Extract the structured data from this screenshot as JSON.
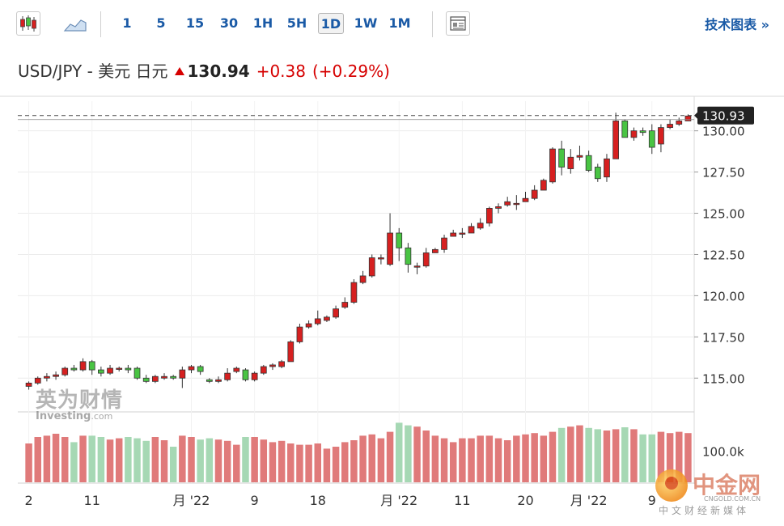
{
  "toolbar": {
    "timeframes": [
      "1",
      "5",
      "15",
      "30",
      "1H",
      "5H",
      "1D",
      "1W",
      "1M"
    ],
    "active_timeframe": "1D",
    "technical_label": "技术图表 »"
  },
  "quote": {
    "pair": "USD/JPY - 美元 日元",
    "price": "130.94",
    "change": "+0.38",
    "change_pct": "(+0.29%)"
  },
  "watermark": {
    "cn": "英为财情",
    "en": "Investing",
    "en_suffix": ".com"
  },
  "logo": {
    "name": "中金网",
    "sub": "中文财经新媒体",
    "domain": "CNGOLD.COM.CN"
  },
  "colors": {
    "up": "#d62020",
    "down": "#49c443",
    "vol_up": "#e07a7a",
    "vol_down": "#a6d8b4",
    "accent": "#1a5aa6"
  },
  "chart_data": {
    "type": "candlestick",
    "title": "USD/JPY - 美元 日元",
    "current_price_label": "130.93",
    "ylim": [
      113.0,
      131.8
    ],
    "y_ticks": [
      115.0,
      117.5,
      120.0,
      122.5,
      125.0,
      127.5,
      130.0
    ],
    "y_tick_labels": [
      "115.00",
      "117.50",
      "120.00",
      "122.50",
      "125.00",
      "127.50",
      "130.00"
    ],
    "volume_tick_label": "100.0k",
    "x_labels": [
      {
        "i": 0,
        "label": "2"
      },
      {
        "i": 7,
        "label": "11"
      },
      {
        "i": 18,
        "label": "月 '22"
      },
      {
        "i": 25,
        "label": "9"
      },
      {
        "i": 32,
        "label": "18"
      },
      {
        "i": 41,
        "label": "月 '22"
      },
      {
        "i": 48,
        "label": "11"
      },
      {
        "i": 55,
        "label": "20"
      },
      {
        "i": 62,
        "label": "月 '22"
      },
      {
        "i": 69,
        "label": "9"
      }
    ],
    "candles": [
      [
        114.5,
        114.7,
        114.3,
        114.8,
        60
      ],
      [
        114.7,
        115.0,
        114.6,
        115.1,
        70
      ],
      [
        115.0,
        115.1,
        114.8,
        115.3,
        72
      ],
      [
        115.1,
        115.2,
        114.9,
        115.4,
        75
      ],
      [
        115.2,
        115.6,
        115.1,
        115.7,
        70
      ],
      [
        115.6,
        115.5,
        115.4,
        115.8,
        62
      ],
      [
        115.5,
        116.0,
        115.4,
        116.2,
        72
      ],
      [
        116.0,
        115.5,
        115.2,
        116.1,
        72
      ],
      [
        115.5,
        115.3,
        115.1,
        115.7,
        70
      ],
      [
        115.3,
        115.6,
        115.2,
        115.8,
        66
      ],
      [
        115.6,
        115.6,
        115.4,
        115.7,
        68
      ],
      [
        115.6,
        115.5,
        115.3,
        115.8,
        70
      ],
      [
        115.6,
        115.0,
        114.9,
        115.7,
        68
      ],
      [
        115.0,
        114.8,
        114.7,
        115.2,
        64
      ],
      [
        114.8,
        115.1,
        114.7,
        115.2,
        70
      ],
      [
        115.0,
        115.1,
        114.9,
        115.3,
        65
      ],
      [
        115.1,
        115.0,
        114.9,
        115.2,
        55
      ],
      [
        115.0,
        115.5,
        114.4,
        115.7,
        72
      ],
      [
        115.5,
        115.7,
        115.3,
        115.8,
        70
      ],
      [
        115.7,
        115.4,
        115.2,
        115.8,
        66
      ],
      [
        114.9,
        114.8,
        114.7,
        115.0,
        68
      ],
      [
        114.8,
        114.9,
        114.7,
        115.1,
        66
      ],
      [
        114.9,
        115.3,
        114.8,
        115.6,
        64
      ],
      [
        115.4,
        115.6,
        115.3,
        115.7,
        58
      ],
      [
        115.5,
        114.9,
        114.8,
        115.6,
        70
      ],
      [
        114.9,
        115.3,
        114.8,
        115.4,
        70
      ],
      [
        115.3,
        115.7,
        115.2,
        115.8,
        66
      ],
      [
        115.7,
        115.8,
        115.5,
        115.9,
        62
      ],
      [
        115.7,
        116.0,
        115.6,
        116.1,
        64
      ],
      [
        116.0,
        117.2,
        116.0,
        117.3,
        60
      ],
      [
        117.2,
        118.1,
        117.1,
        118.3,
        58
      ],
      [
        118.1,
        118.3,
        118.0,
        118.5,
        58
      ],
      [
        118.3,
        118.6,
        118.2,
        119.1,
        60
      ],
      [
        118.5,
        118.7,
        118.4,
        118.8,
        52
      ],
      [
        118.7,
        119.2,
        118.6,
        119.4,
        55
      ],
      [
        119.3,
        119.6,
        119.2,
        119.9,
        62
      ],
      [
        119.6,
        120.8,
        119.5,
        121.0,
        65
      ],
      [
        120.8,
        121.2,
        120.7,
        121.5,
        72
      ],
      [
        121.2,
        122.3,
        121.1,
        122.5,
        74
      ],
      [
        122.3,
        122.3,
        121.9,
        122.5,
        68
      ],
      [
        121.9,
        123.8,
        121.8,
        125.0,
        78
      ],
      [
        123.8,
        122.9,
        122.1,
        124.1,
        92
      ],
      [
        122.9,
        121.9,
        121.4,
        123.2,
        88
      ],
      [
        121.8,
        121.8,
        121.3,
        122.0,
        86
      ],
      [
        121.8,
        122.6,
        121.7,
        122.9,
        80
      ],
      [
        122.6,
        122.8,
        122.6,
        122.9,
        72
      ],
      [
        122.8,
        123.5,
        122.6,
        123.7,
        68
      ],
      [
        123.6,
        123.8,
        123.6,
        124.0,
        62
      ],
      [
        123.8,
        123.8,
        123.5,
        124.1,
        68
      ],
      [
        123.8,
        124.2,
        123.8,
        124.4,
        68
      ],
      [
        124.1,
        124.4,
        124.0,
        124.7,
        72
      ],
      [
        124.4,
        125.3,
        124.2,
        125.4,
        72
      ],
      [
        125.3,
        125.4,
        125.0,
        125.6,
        68
      ],
      [
        125.5,
        125.7,
        125.4,
        126.0,
        65
      ],
      [
        125.6,
        125.6,
        125.2,
        126.1,
        72
      ],
      [
        125.7,
        125.9,
        125.7,
        126.3,
        74
      ],
      [
        125.9,
        126.4,
        125.8,
        126.7,
        76
      ],
      [
        126.4,
        127.0,
        126.4,
        127.1,
        72
      ],
      [
        126.9,
        128.9,
        126.8,
        129.0,
        78
      ],
      [
        128.9,
        127.8,
        127.3,
        129.4,
        84
      ],
      [
        127.7,
        128.4,
        127.4,
        128.9,
        86
      ],
      [
        128.4,
        128.5,
        128.2,
        129.1,
        88
      ],
      [
        128.5,
        127.6,
        127.5,
        128.8,
        84
      ],
      [
        127.8,
        127.1,
        126.9,
        128.0,
        82
      ],
      [
        127.2,
        128.3,
        126.9,
        128.6,
        80
      ],
      [
        128.3,
        130.6,
        128.3,
        131.1,
        82
      ],
      [
        130.6,
        129.6,
        129.6,
        130.7,
        85
      ],
      [
        129.6,
        130.0,
        129.4,
        130.2,
        82
      ],
      [
        130.0,
        129.9,
        129.7,
        130.2,
        74
      ],
      [
        130.0,
        129.0,
        128.6,
        130.4,
        74
      ],
      [
        129.2,
        130.2,
        128.7,
        130.4,
        78
      ],
      [
        130.2,
        130.4,
        130.1,
        130.7,
        76
      ],
      [
        130.4,
        130.6,
        130.3,
        130.8,
        78
      ],
      [
        130.6,
        130.9,
        130.6,
        131.0,
        76
      ]
    ]
  }
}
